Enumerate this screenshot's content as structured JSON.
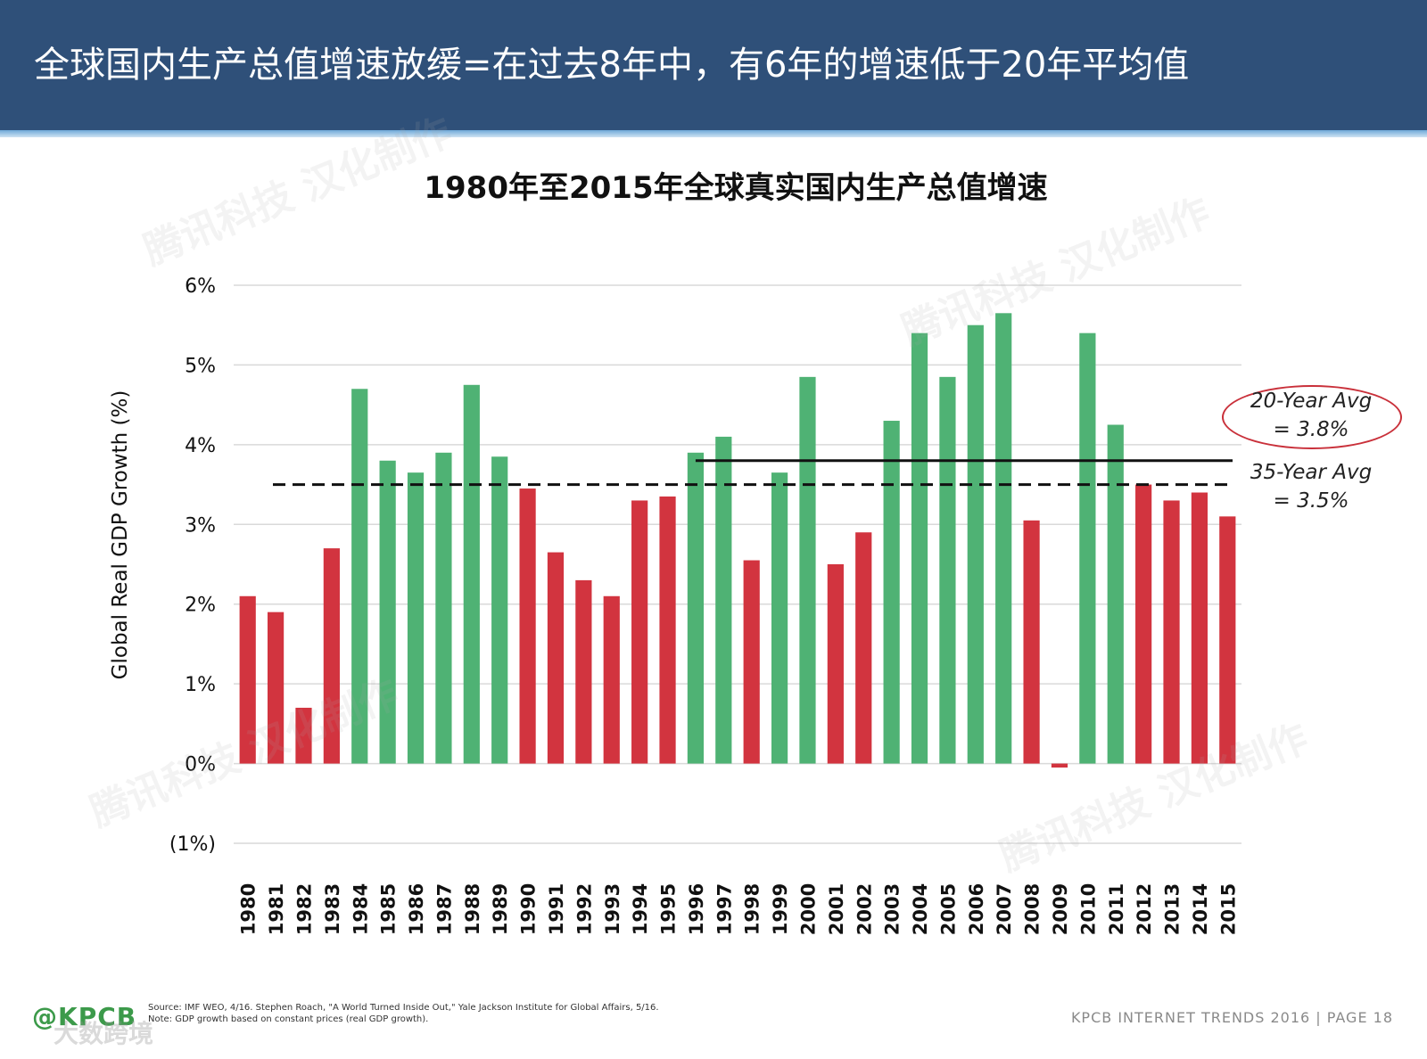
{
  "header": {
    "title": "全球国内生产总值增速放缓=在过去8年中，有6年的增速低于20年平均值"
  },
  "colors": {
    "header_bg": "#2f5079",
    "above_avg": "#4fb274",
    "below_avg": "#d2343f",
    "grid": "#d9d9d9",
    "avg_line": "#111111",
    "ellipse": "#c9303a"
  },
  "chart_data": {
    "type": "bar",
    "title": "1980年至2015年全球真实国内生产总值增速",
    "ylabel": "Global Real GDP Growth (%)",
    "xlabel": "",
    "ylim": [
      -1,
      6
    ],
    "yticks": [
      -1,
      0,
      1,
      2,
      3,
      4,
      5,
      6
    ],
    "ytick_labels": [
      "(1%)",
      "0%",
      "1%",
      "2%",
      "3%",
      "4%",
      "5%",
      "6%"
    ],
    "categories": [
      "1980",
      "1981",
      "1982",
      "1983",
      "1984",
      "1985",
      "1986",
      "1987",
      "1988",
      "1989",
      "1990",
      "1991",
      "1992",
      "1993",
      "1994",
      "1995",
      "1996",
      "1997",
      "1998",
      "1999",
      "2000",
      "2001",
      "2002",
      "2003",
      "2004",
      "2005",
      "2006",
      "2007",
      "2008",
      "2009",
      "2010",
      "2011",
      "2012",
      "2013",
      "2014",
      "2015"
    ],
    "values": [
      2.1,
      1.9,
      0.7,
      2.7,
      4.7,
      3.8,
      3.65,
      3.9,
      4.75,
      3.85,
      3.45,
      2.65,
      2.3,
      2.1,
      3.3,
      3.35,
      3.9,
      4.1,
      2.55,
      3.65,
      4.85,
      2.5,
      2.9,
      4.3,
      5.4,
      4.85,
      5.5,
      5.65,
      3.05,
      -0.05,
      5.4,
      4.25,
      3.5,
      3.3,
      3.4,
      3.1
    ],
    "bar_status": [
      "below",
      "below",
      "below",
      "below",
      "above",
      "above",
      "above",
      "above",
      "above",
      "above",
      "below",
      "below",
      "below",
      "below",
      "below",
      "below",
      "above",
      "above",
      "below",
      "above",
      "above",
      "below",
      "below",
      "above",
      "above",
      "above",
      "above",
      "above",
      "below",
      "below",
      "above",
      "above",
      "below",
      "below",
      "below",
      "below"
    ],
    "grid": true,
    "reference_lines": [
      {
        "name": "35-Year Avg",
        "value": 3.5,
        "style": "dashed",
        "from": "1980",
        "to": "2015"
      },
      {
        "name": "20-Year Avg",
        "value": 3.8,
        "style": "solid",
        "from": "1996",
        "to": "2015"
      }
    ],
    "annotations": {
      "avg20_line1": "20-Year Avg",
      "avg20_line2": "= 3.8%",
      "avg35_line1": "35-Year Avg",
      "avg35_line2": "= 3.5%"
    }
  },
  "footer": {
    "logo": "@KPCB",
    "source_line1": "Source: IMF WEO, 4/16. Stephen Roach, \"A World Turned Inside Out,\" Yale Jackson Institute for Global Affairs, 5/16.",
    "source_line2": "Note: GDP growth based on constant prices (real GDP growth).",
    "right_text": "KPCB INTERNET TRENDS 2016  |  PAGE 18"
  },
  "watermarks": {
    "text_a": "腾讯科技 汉化制作",
    "text_b": "大数跨境"
  }
}
